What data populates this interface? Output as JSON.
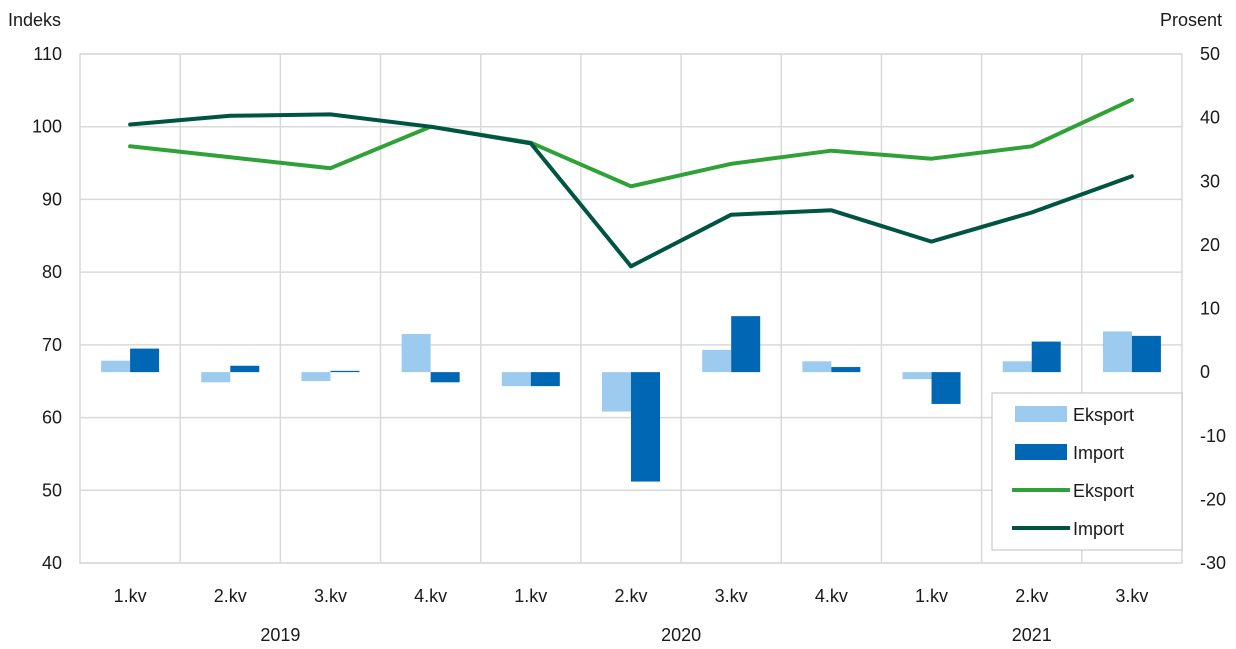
{
  "chart_data": {
    "type": "bar",
    "ylabel_left": "Indeks",
    "ylabel_right": "Prosent",
    "ylim_left": [
      40,
      110
    ],
    "ylim_right": [
      -30,
      50
    ],
    "yticks_left": [
      "40",
      "50",
      "60",
      "70",
      "80",
      "90",
      "100",
      "110"
    ],
    "yticks_right": [
      "-30",
      "-20",
      "-10",
      "0",
      "10",
      "20",
      "30",
      "40",
      "50"
    ],
    "categories": [
      "1.kv",
      "2.kv",
      "3.kv",
      "4.kv",
      "1.kv",
      "2.kv",
      "3.kv",
      "4.kv",
      "1.kv",
      "2.kv",
      "3.kv"
    ],
    "years": [
      {
        "label": "2019",
        "span": [
          0,
          3
        ]
      },
      {
        "label": "2020",
        "span": [
          4,
          7
        ]
      },
      {
        "label": "2021",
        "span": [
          8,
          10
        ]
      }
    ],
    "grid": true,
    "legend_position": "bottom-right",
    "bar_series": [
      {
        "name": "Eksport",
        "axis": "right",
        "color": "#9dcbef",
        "values": [
          1.8,
          -1.6,
          -1.4,
          6.0,
          -2.2,
          -6.2,
          3.5,
          1.7,
          -1.1,
          1.7,
          6.4
        ]
      },
      {
        "name": "Import",
        "axis": "right",
        "color": "#0067b4",
        "values": [
          3.7,
          1.0,
          0.2,
          -1.6,
          -2.2,
          -17.2,
          8.8,
          0.8,
          -5.0,
          4.8,
          5.7
        ]
      }
    ],
    "line_series": [
      {
        "name": "Eksport",
        "axis": "left",
        "color": "#2ea236",
        "values": [
          97.3,
          95.8,
          94.3,
          100.0,
          97.8,
          91.8,
          94.9,
          96.7,
          95.6,
          97.3,
          103.7
        ]
      },
      {
        "name": "Import",
        "axis": "left",
        "color": "#005443",
        "values": [
          100.3,
          101.5,
          101.7,
          100.0,
          97.7,
          80.8,
          87.9,
          88.5,
          84.2,
          88.2,
          93.2
        ]
      }
    ]
  }
}
